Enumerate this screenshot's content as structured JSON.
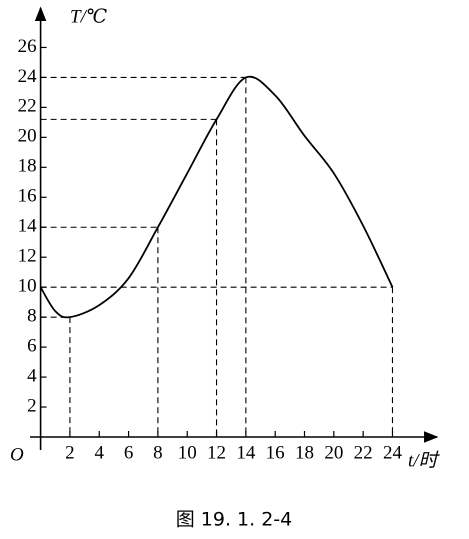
{
  "chart_data": {
    "type": "line",
    "y_axis_label": "T/℃",
    "x_axis_label": "t/时",
    "origin_label": "O",
    "caption": "图 19. 1. 2-4",
    "xlim": [
      0,
      26.9
    ],
    "ylim": [
      0,
      28.5
    ],
    "xticks": [
      2,
      4,
      6,
      8,
      10,
      12,
      14,
      16,
      18,
      20,
      22,
      24
    ],
    "yticks": [
      2,
      4,
      6,
      8,
      10,
      12,
      14,
      16,
      18,
      20,
      22,
      24,
      26
    ],
    "x": [
      0,
      1,
      2,
      4,
      6,
      8,
      10,
      12,
      14,
      16,
      18,
      20,
      22,
      24
    ],
    "series": [
      {
        "color": "#000000",
        "values": [
          10,
          8.4,
          8,
          8.8,
          10.6,
          14,
          17.6,
          21.2,
          24,
          22.8,
          20.1,
          17.6,
          14.1,
          10
        ]
      }
    ],
    "reference_lines": [
      {
        "x": 2,
        "y": 8
      },
      {
        "x": 8,
        "y": 14
      },
      {
        "x": 12,
        "y": 21.2
      },
      {
        "x": 14,
        "y": 24
      },
      {
        "x": 24,
        "y": 10
      }
    ]
  }
}
